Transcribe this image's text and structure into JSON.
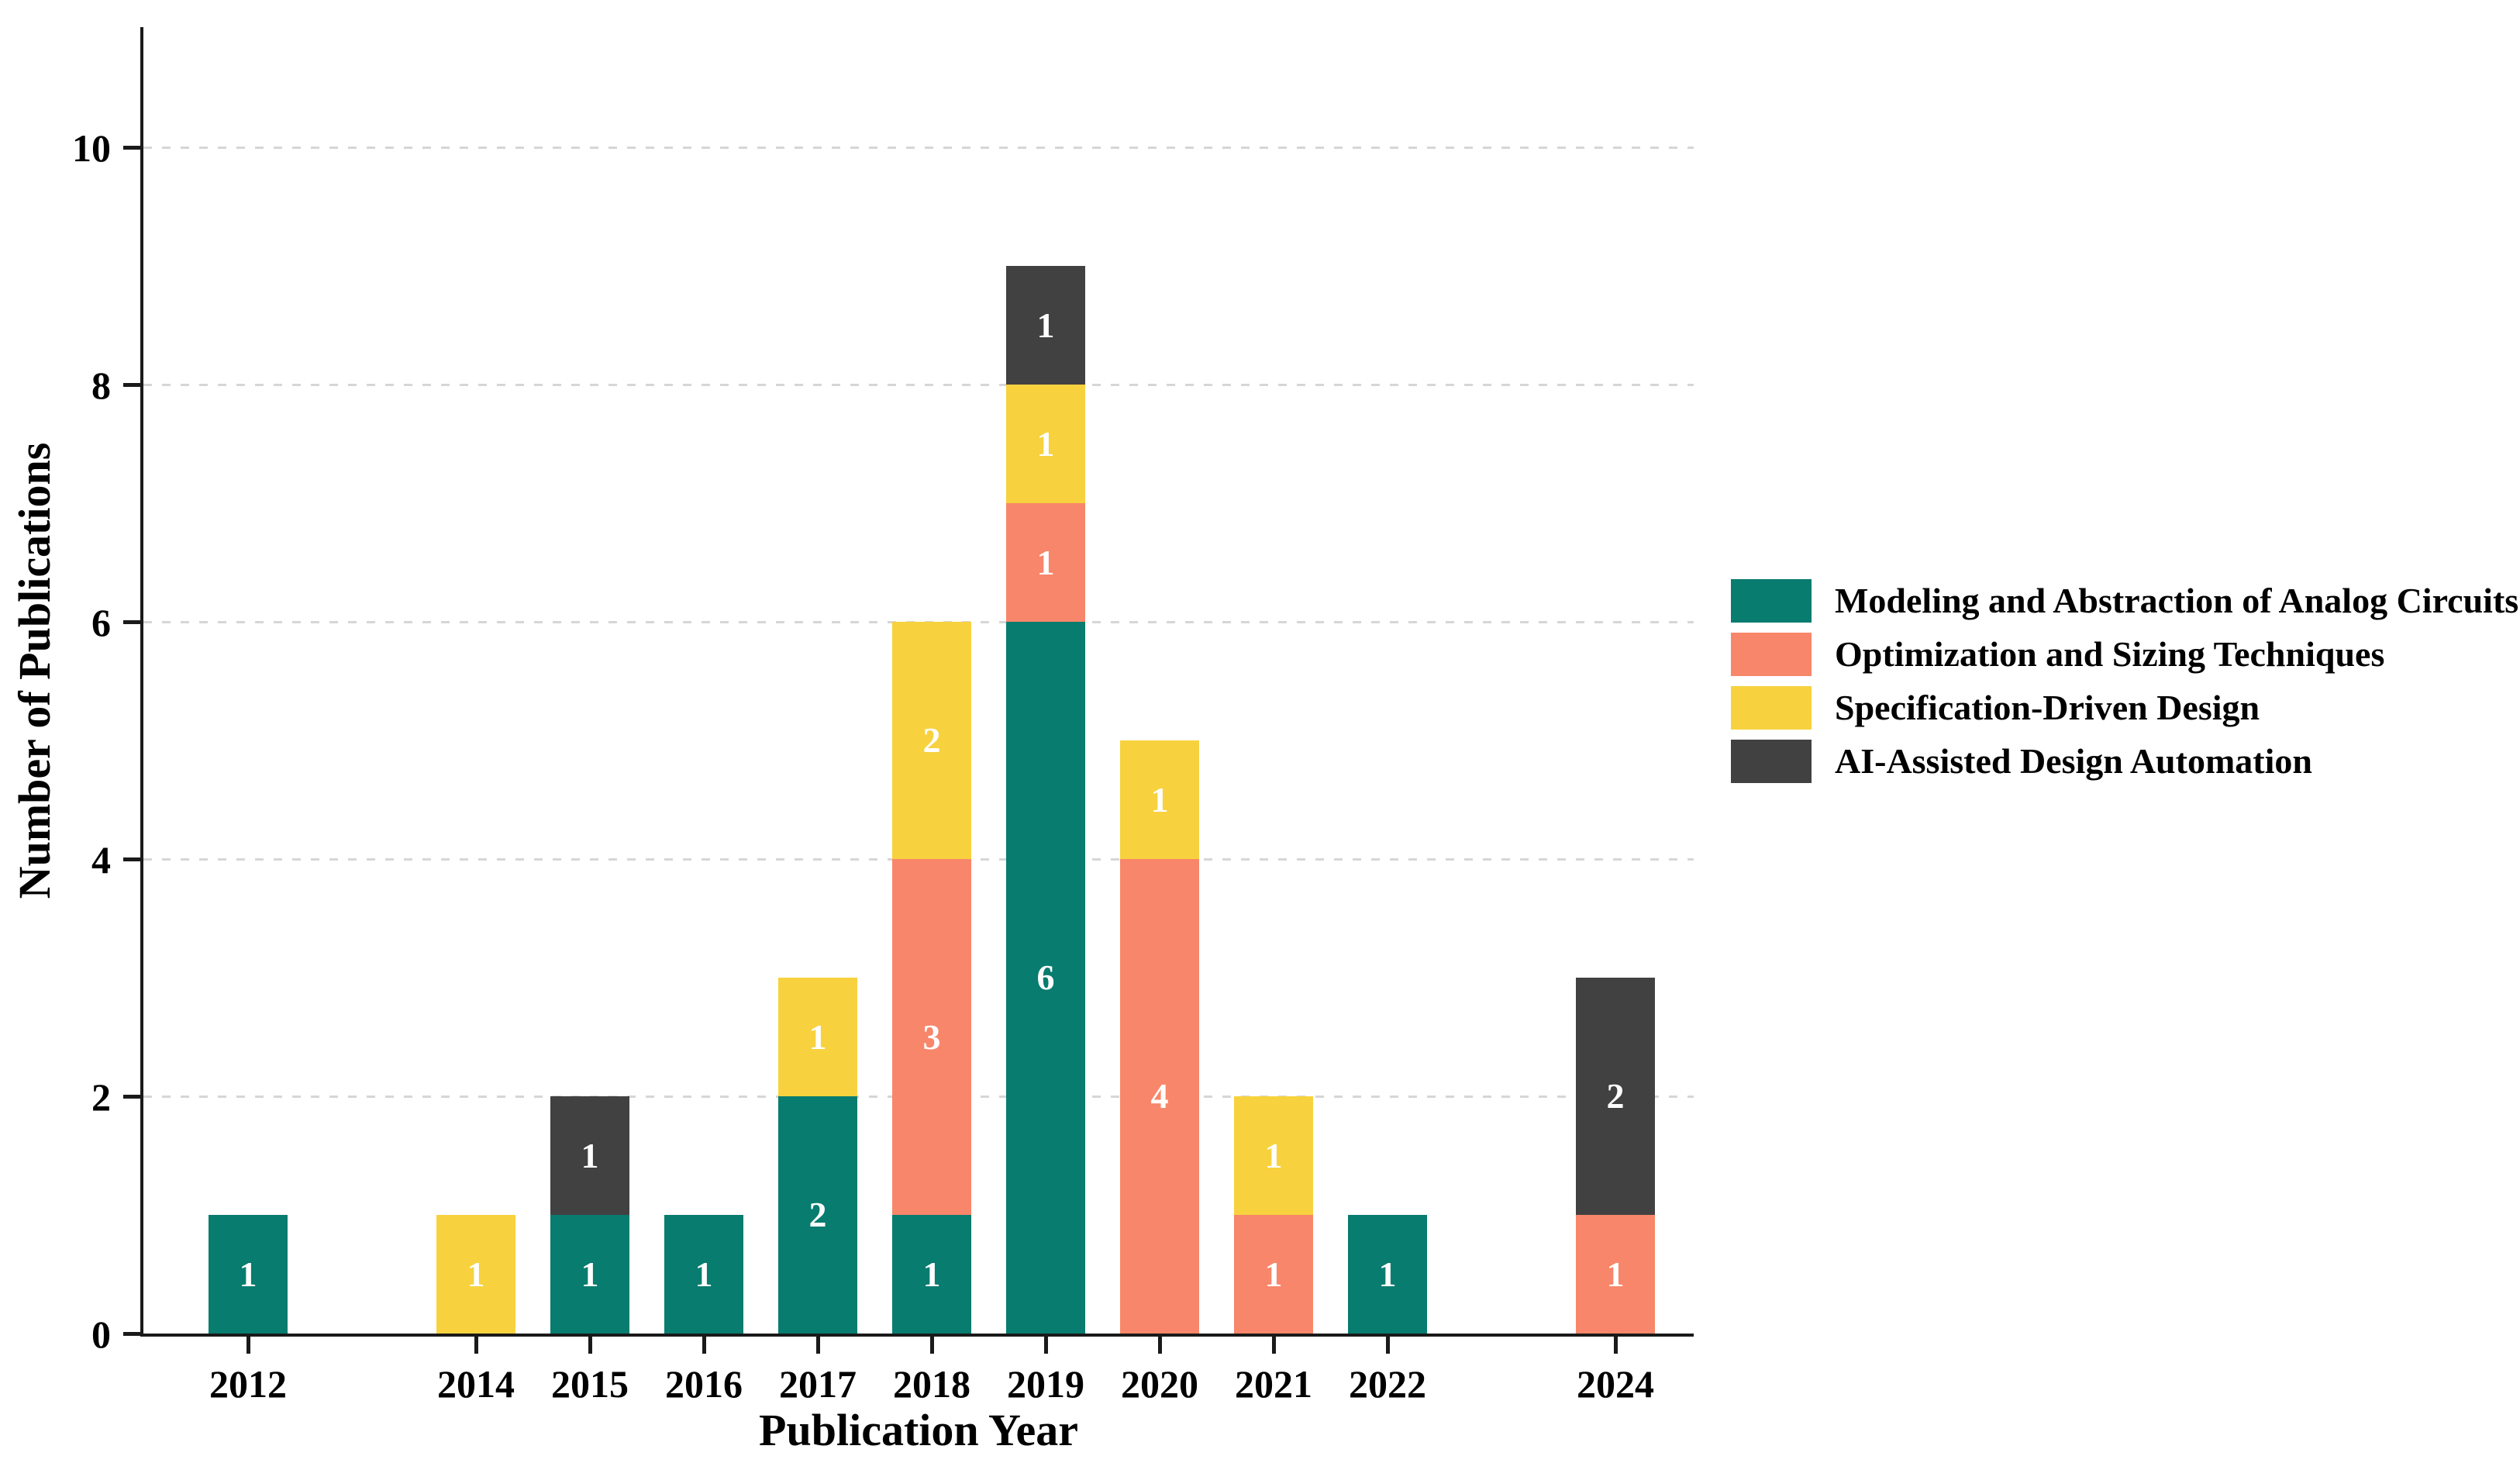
{
  "figure": {
    "background": "#ffffff",
    "axis_color": "#1a1a1a",
    "gridline_color": "#d6d6d6",
    "bar_value_label_color": "#ffffff"
  },
  "chart_data": {
    "type": "bar",
    "stacked": true,
    "title": "",
    "xlabel": "Publication Year",
    "ylabel": "Number of Publications",
    "ylim": [
      0,
      11
    ],
    "yticks": [
      0,
      2,
      4,
      6,
      8,
      10
    ],
    "grid": "horizontal dashed at y=2,4,6,8,10",
    "legend_position": "center-right, no frame",
    "x_axis_note": "numeric year axis 2012-2024; 2013 and 2023 have no bars or ticks",
    "categories": [
      "2012",
      "2014",
      "2015",
      "2016",
      "2017",
      "2018",
      "2019",
      "2020",
      "2021",
      "2022",
      "2024"
    ],
    "series": [
      {
        "name": "Modeling and Abstraction of Analog Circuits",
        "color": "#077C6F",
        "values": [
          1,
          0,
          1,
          1,
          2,
          1,
          6,
          0,
          0,
          1,
          0
        ]
      },
      {
        "name": "Optimization and Sizing Techniques",
        "color": "#F8866A",
        "values": [
          0,
          0,
          0,
          0,
          0,
          3,
          1,
          4,
          1,
          0,
          1
        ]
      },
      {
        "name": "Specification-Driven Design",
        "color": "#F7D23E",
        "values": [
          0,
          1,
          0,
          0,
          1,
          2,
          1,
          1,
          1,
          0,
          0
        ]
      },
      {
        "name": "AI-Assisted Design Automation",
        "color": "#414141",
        "values": [
          0,
          0,
          1,
          0,
          0,
          0,
          1,
          0,
          0,
          0,
          2
        ]
      }
    ],
    "totals": [
      1,
      1,
      2,
      1,
      3,
      6,
      9,
      5,
      2,
      1,
      3
    ]
  }
}
